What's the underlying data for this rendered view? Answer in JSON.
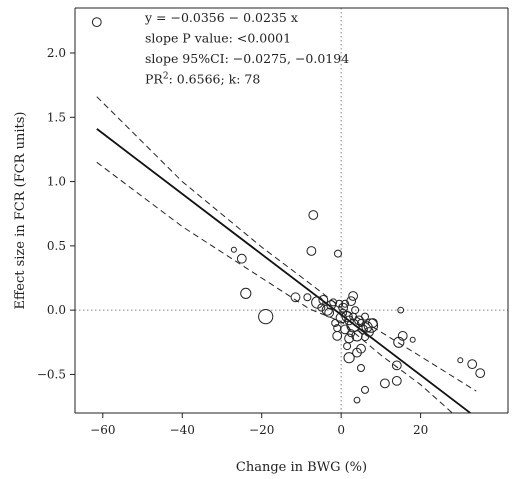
{
  "chart_data": {
    "type": "scatter",
    "xlabel": "Change in BWG (%)",
    "ylabel": "Effect size in FCR (FCR units)",
    "xlim": [
      -67,
      42
    ],
    "ylim": [
      -0.8,
      2.35
    ],
    "xticks": [
      -60,
      -40,
      -20,
      0,
      20
    ],
    "xtick_labels": [
      "−60",
      "−40",
      "−20",
      "0",
      "20"
    ],
    "yticks": [
      -0.5,
      0.0,
      0.5,
      1.0,
      1.5,
      2.0
    ],
    "ytick_labels": [
      "−0.5",
      "0.0",
      "0.5",
      "1.0",
      "1.5",
      "2.0"
    ],
    "reference_lines": {
      "x": 0,
      "y": 0
    },
    "annotations": [
      {
        "parts": [
          {
            "text": "y = −0.0356 − 0.0235 x"
          }
        ]
      },
      {
        "parts": [
          {
            "text": "slope P value: <0.0001"
          }
        ]
      },
      {
        "parts": [
          {
            "text": "slope 95%CI: −0.0275, −0.0194"
          }
        ]
      },
      {
        "parts": [
          {
            "text": "PR"
          },
          {
            "text": "2",
            "sup": true
          },
          {
            "text": ": 0.6566; k: 78"
          }
        ]
      }
    ],
    "regression": {
      "intercept": -0.0356,
      "slope": -0.0235,
      "x_range": [
        -61.5,
        32.5
      ]
    },
    "ci_bands": {
      "upper": [
        [
          -61.5,
          1.66
        ],
        [
          -40,
          1.0
        ],
        [
          -20,
          0.49
        ],
        [
          -8,
          0.21
        ],
        [
          0,
          0.02
        ],
        [
          10,
          -0.17
        ],
        [
          20,
          -0.36
        ],
        [
          34,
          -0.63
        ]
      ],
      "lower": [
        [
          -61.5,
          1.15
        ],
        [
          -40,
          0.65
        ],
        [
          -20,
          0.25
        ],
        [
          -8,
          0.01
        ],
        [
          0,
          -0.09
        ],
        [
          10,
          -0.35
        ],
        [
          20,
          -0.58
        ],
        [
          28,
          -0.8
        ]
      ]
    },
    "points": [
      {
        "x": -61.5,
        "y": 2.24,
        "w": 2
      },
      {
        "x": -7,
        "y": 0.74,
        "w": 2
      },
      {
        "x": -7.5,
        "y": 0.46,
        "w": 2
      },
      {
        "x": -25,
        "y": 0.4,
        "w": 2
      },
      {
        "x": -27,
        "y": 0.47,
        "w": 0.3
      },
      {
        "x": -24,
        "y": 0.13,
        "w": 3
      },
      {
        "x": -19,
        "y": -0.05,
        "w": 7
      },
      {
        "x": -11.5,
        "y": 0.1,
        "w": 2
      },
      {
        "x": -8.5,
        "y": 0.1,
        "w": 1
      },
      {
        "x": -6,
        "y": 0.06,
        "w": 4
      },
      {
        "x": -4.5,
        "y": 0.08,
        "w": 2
      },
      {
        "x": -3.5,
        "y": 0.0,
        "w": 3
      },
      {
        "x": -2.5,
        "y": 0.04,
        "w": 2
      },
      {
        "x": -1.5,
        "y": -0.1,
        "w": 1
      },
      {
        "x": -0.8,
        "y": 0.44,
        "w": 1
      },
      {
        "x": -1,
        "y": -0.2,
        "w": 2
      },
      {
        "x": -0.5,
        "y": 0.05,
        "w": 1
      },
      {
        "x": 0,
        "y": -0.06,
        "w": 3
      },
      {
        "x": 0.5,
        "y": 0.02,
        "w": 2
      },
      {
        "x": 1,
        "y": -0.15,
        "w": 2
      },
      {
        "x": 1.5,
        "y": -0.05,
        "w": 3
      },
      {
        "x": 2,
        "y": -0.22,
        "w": 2
      },
      {
        "x": 2.5,
        "y": 0.07,
        "w": 2
      },
      {
        "x": 3,
        "y": 0.11,
        "w": 2
      },
      {
        "x": 3,
        "y": -0.12,
        "w": 5
      },
      {
        "x": 3.5,
        "y": 0.0,
        "w": 1
      },
      {
        "x": 4,
        "y": -0.2,
        "w": 3
      },
      {
        "x": 4.5,
        "y": -0.08,
        "w": 2
      },
      {
        "x": 5,
        "y": -0.3,
        "w": 2
      },
      {
        "x": 5,
        "y": -0.1,
        "w": 1
      },
      {
        "x": 5.5,
        "y": -0.15,
        "w": 2
      },
      {
        "x": 6,
        "y": -0.21,
        "w": 1
      },
      {
        "x": 6.5,
        "y": -0.13,
        "w": 3
      },
      {
        "x": 7,
        "y": -0.17,
        "w": 2
      },
      {
        "x": 7.5,
        "y": -0.12,
        "w": 6
      },
      {
        "x": 8,
        "y": -0.1,
        "w": 2
      },
      {
        "x": 2,
        "y": -0.37,
        "w": 3
      },
      {
        "x": 4,
        "y": -0.33,
        "w": 2
      },
      {
        "x": 5,
        "y": -0.45,
        "w": 1
      },
      {
        "x": 6,
        "y": -0.62,
        "w": 1
      },
      {
        "x": 4,
        "y": -0.7,
        "w": 0.5
      },
      {
        "x": 11,
        "y": -0.57,
        "w": 2
      },
      {
        "x": 14,
        "y": -0.55,
        "w": 2
      },
      {
        "x": 14,
        "y": -0.43,
        "w": 2
      },
      {
        "x": 14.5,
        "y": -0.25,
        "w": 3
      },
      {
        "x": 15.5,
        "y": -0.2,
        "w": 2
      },
      {
        "x": 15,
        "y": 0.0,
        "w": 0.5
      },
      {
        "x": 18,
        "y": -0.23,
        "w": 0.3
      },
      {
        "x": 30,
        "y": -0.39,
        "w": 0.3
      },
      {
        "x": 33,
        "y": -0.42,
        "w": 2
      },
      {
        "x": 35,
        "y": -0.49,
        "w": 2
      },
      {
        "x": -3,
        "y": -0.02,
        "w": 2
      },
      {
        "x": -2,
        "y": 0.06,
        "w": 1
      },
      {
        "x": 0.5,
        "y": -0.02,
        "w": 1
      },
      {
        "x": 1,
        "y": 0.05,
        "w": 1
      },
      {
        "x": 2,
        "y": -0.08,
        "w": 2
      },
      {
        "x": 3,
        "y": -0.05,
        "w": 1
      },
      {
        "x": 6,
        "y": -0.05,
        "w": 1
      },
      {
        "x": 1.5,
        "y": -0.28,
        "w": 1
      },
      {
        "x": -5,
        "y": 0.02,
        "w": 1
      },
      {
        "x": -1,
        "y": -0.14,
        "w": 1
      },
      {
        "x": 2.5,
        "y": -0.18,
        "w": 1
      }
    ]
  }
}
